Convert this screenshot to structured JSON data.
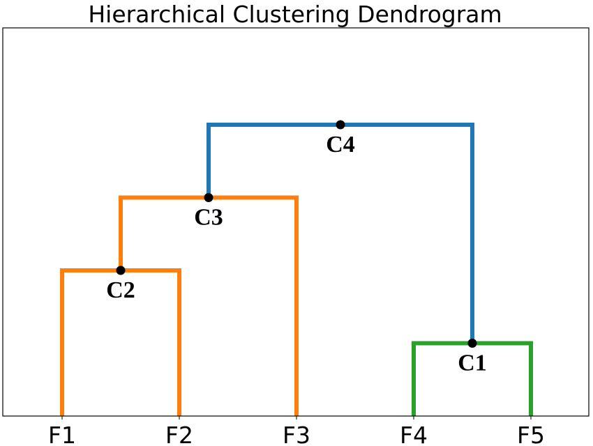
{
  "chart_data": {
    "type": "dendrogram",
    "title": "Hierarchical Clustering Dendrogram",
    "xlabel": "",
    "ylabel": "",
    "leaves": [
      "F1",
      "F2",
      "F3",
      "F4",
      "F5"
    ],
    "ylim": [
      0,
      5.33
    ],
    "grid": false,
    "colors": {
      "cluster_orange": "#ff7f0e",
      "cluster_green": "#2ca02c",
      "cluster_blue": "#1f77b4",
      "node": "#000000",
      "axes": "#000000"
    },
    "merges": [
      {
        "label": "C1",
        "left": "F4",
        "right": "F5",
        "height": 1.0,
        "color": "#2ca02c"
      },
      {
        "label": "C2",
        "left": "F1",
        "right": "F2",
        "height": 2.0,
        "color": "#ff7f0e"
      },
      {
        "label": "C3",
        "left": "C2",
        "right": "F3",
        "height": 3.0,
        "color": "#ff7f0e"
      },
      {
        "label": "C4",
        "left": "C3",
        "right": "C1",
        "height": 4.0,
        "color": "#1f77b4"
      }
    ]
  }
}
